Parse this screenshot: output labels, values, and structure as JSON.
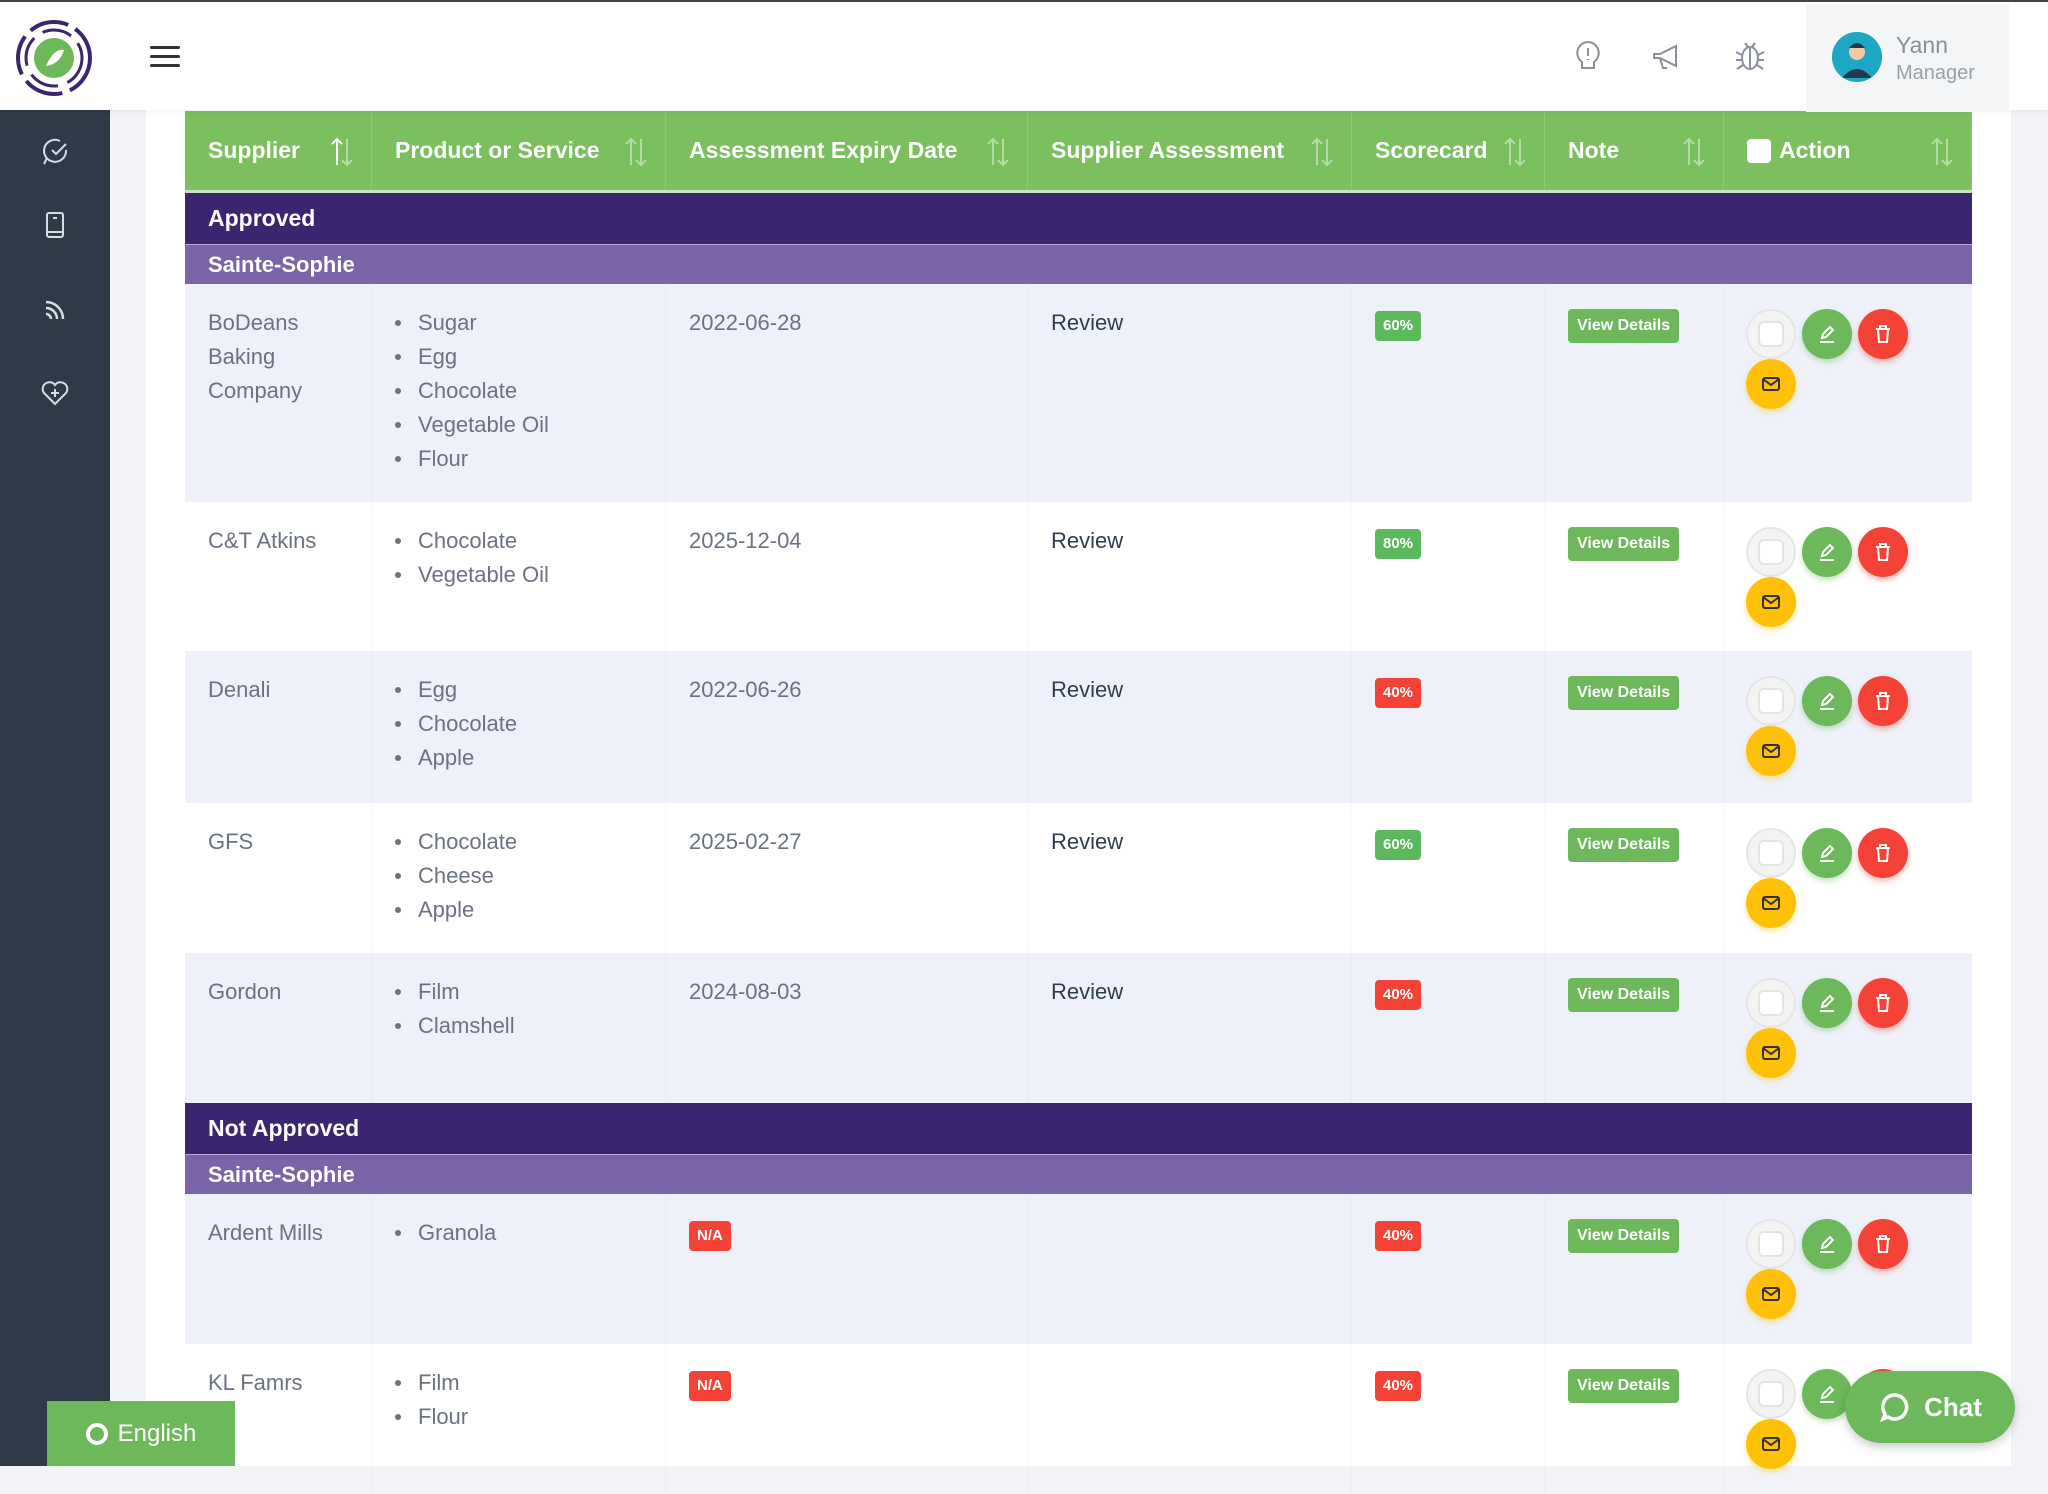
{
  "user": {
    "name": "Yann",
    "role": "Manager"
  },
  "table": {
    "headers": [
      "Supplier",
      "Product or Service",
      "Assessment Expiry Date",
      "Supplier Assessment",
      "Scorecard",
      "Note",
      "Action"
    ],
    "groups": [
      {
        "status": "Approved",
        "location": "Sainte-Sophie",
        "rows": [
          {
            "supplier": "BoDeans Baking Company",
            "products": [
              "Sugar",
              "Egg",
              "Chocolate",
              "Vegetable Oil",
              "Flour"
            ],
            "expiry": "2022-06-28",
            "assessment": "Review",
            "scorecard": "60%",
            "score_color": "green",
            "note": "View Details"
          },
          {
            "supplier": "C&T Atkins",
            "products": [
              "Chocolate",
              "Vegetable Oil"
            ],
            "expiry": "2025-12-04",
            "assessment": "Review",
            "scorecard": "80%",
            "score_color": "green",
            "note": "View Details"
          },
          {
            "supplier": "Denali",
            "products": [
              "Egg",
              "Chocolate",
              "Apple"
            ],
            "expiry": "2022-06-26",
            "assessment": "Review",
            "scorecard": "40%",
            "score_color": "red",
            "note": "View Details"
          },
          {
            "supplier": "GFS",
            "products": [
              "Chocolate",
              "Cheese",
              "Apple"
            ],
            "expiry": "2025-02-27",
            "assessment": "Review",
            "scorecard": "60%",
            "score_color": "green",
            "note": "View Details"
          },
          {
            "supplier": "Gordon",
            "products": [
              "Film",
              "Clamshell"
            ],
            "expiry": "2024-08-03",
            "assessment": "Review",
            "scorecard": "40%",
            "score_color": "red",
            "note": "View Details"
          }
        ]
      },
      {
        "status": "Not Approved",
        "location": "Sainte-Sophie",
        "rows": [
          {
            "supplier": "Ardent Mills",
            "products": [
              "Granola"
            ],
            "expiry": "N/A",
            "assessment": "",
            "scorecard": "40%",
            "score_color": "red",
            "note": "View Details"
          },
          {
            "supplier": "KL Famrs",
            "products": [
              "Film",
              "Flour"
            ],
            "expiry": "N/A",
            "assessment": "",
            "scorecard": "40%",
            "score_color": "red",
            "note": "View Details"
          }
        ]
      }
    ]
  },
  "chat": {
    "label": "Chat"
  },
  "language": {
    "label": "English"
  },
  "colors": {
    "header": "#7bbf5e",
    "group": "#3b2470",
    "subgroup": "#7a63a6",
    "green": "#5cb85c",
    "red": "#f44336",
    "yellow": "#ffc107"
  }
}
